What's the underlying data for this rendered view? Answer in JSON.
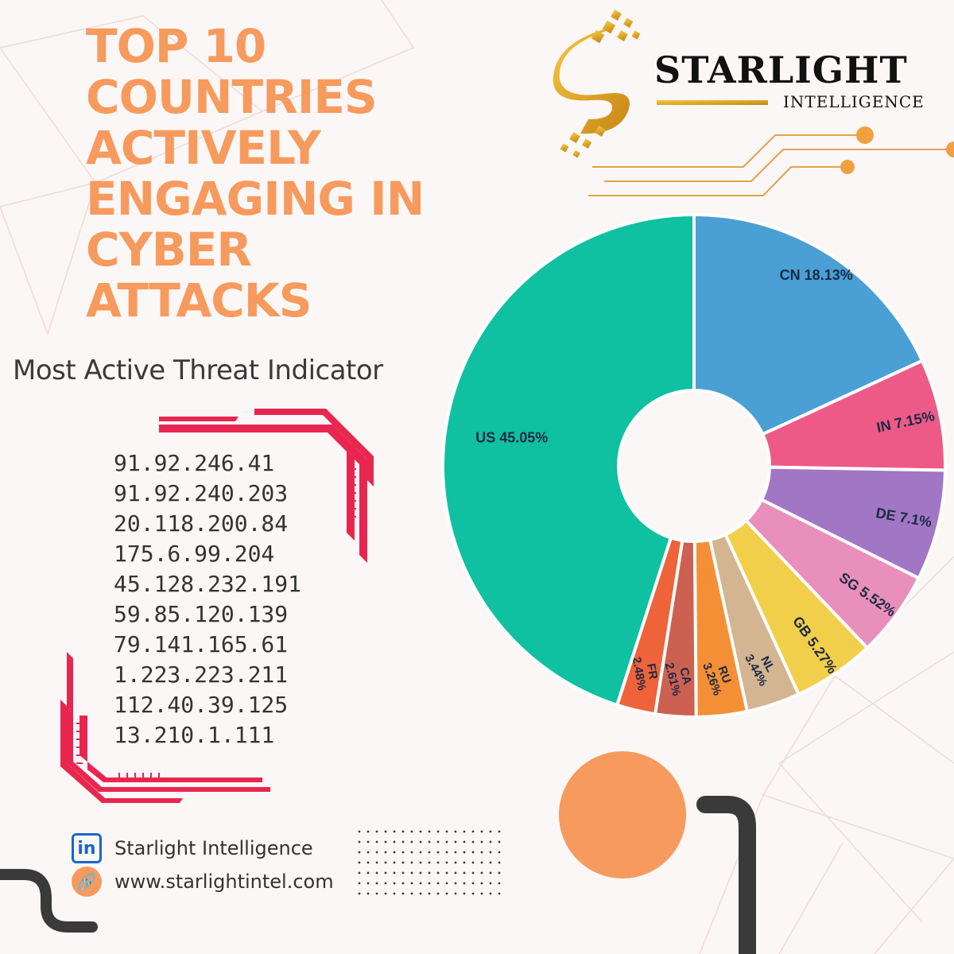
{
  "header": {
    "title": "TOP 10\nCOUNTRIES\nACTIVELY\nENGAGING IN\nCYBER\nATTACKS",
    "subtitle": "Most Active Threat Indicator"
  },
  "brand": {
    "name": "STARLIGHT",
    "tagline": "INTELLIGENCE",
    "logo_icon": "starlight-s-logo"
  },
  "threat_indicators": [
    "91.92.246.41",
    "91.92.240.203",
    "20.118.200.84",
    "175.6.99.204",
    "45.128.232.191",
    "59.85.120.139",
    "79.141.165.61",
    "1.223.223.211",
    "112.40.39.125",
    "13.210.1.111"
  ],
  "contact": {
    "linkedin_label": "Starlight Intelligence",
    "linkedin_icon": "linkedin-icon",
    "website_label": "www.starlightintel.com",
    "website_icon": "link-icon"
  },
  "colors": {
    "title": "#f79a5d",
    "accent_red": "#e8264f",
    "gold": "#e0a225",
    "orange_circle": "#f79a5d"
  },
  "chart_data": {
    "type": "pie",
    "donut": true,
    "legend": "none",
    "slices": [
      {
        "label": "CN 18.13%",
        "code": "CN",
        "value": 18.13,
        "color": "#4a9fd4"
      },
      {
        "label": "IN 7.15%",
        "code": "IN",
        "value": 7.15,
        "color": "#ee5a87"
      },
      {
        "label": "DE 7.1%",
        "code": "DE",
        "value": 7.1,
        "color": "#a176c4"
      },
      {
        "label": "SG 5.52%",
        "code": "SG",
        "value": 5.52,
        "color": "#e88fbb"
      },
      {
        "label": "GB 5.27%",
        "code": "GB",
        "value": 5.27,
        "color": "#f2cf4a"
      },
      {
        "label": "NL\n3.44%",
        "code": "NL",
        "value": 3.44,
        "color": "#d3b592"
      },
      {
        "label": "RU\n3.26%",
        "code": "RU",
        "value": 3.26,
        "color": "#f58f36"
      },
      {
        "label": "CA\n2.61%",
        "code": "CA",
        "value": 2.61,
        "color": "#cc6152"
      },
      {
        "label": "FR\n2.48%",
        "code": "FR",
        "value": 2.48,
        "color": "#ee6339"
      },
      {
        "label": "US 45.05%",
        "code": "US",
        "value": 45.05,
        "color": "#0fc0a1"
      }
    ]
  }
}
